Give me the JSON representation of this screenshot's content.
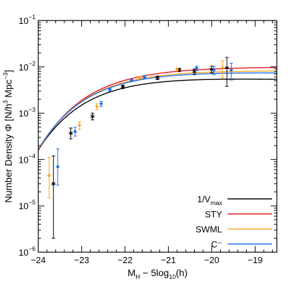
{
  "chart_data": {
    "type": "line",
    "title": "",
    "xlabel": {
      "main": "M",
      "sub1": "H",
      "mid": " − 5log",
      "sub2": "10",
      "tail": "(h)"
    },
    "ylabel": {
      "main": "Number Density Φ [N/h",
      "sup1": "3",
      "mid": " Mpc",
      "sup2": "−3",
      "tail": "]"
    },
    "x_range": [
      -24,
      -18.5
    ],
    "y_range": [
      1e-06,
      0.1
    ],
    "y_scale": "log",
    "x_ticks": [
      -24,
      -23,
      -22,
      -21,
      -20,
      -19
    ],
    "x_tick_labels": [
      "−24",
      "−23",
      "−22",
      "−21",
      "−20",
      "−19"
    ],
    "y_ticks": [
      1e-06,
      1e-05,
      0.0001,
      0.001,
      0.01,
      0.1
    ],
    "y_tick_labels": [
      {
        "base": "10",
        "exp": "−6"
      },
      {
        "base": "10",
        "exp": "−5"
      },
      {
        "base": "10",
        "exp": "−4"
      },
      {
        "base": "10",
        "exp": "−3"
      },
      {
        "base": "10",
        "exp": "−2"
      },
      {
        "base": "10",
        "exp": "−1"
      }
    ],
    "grid": false,
    "legend_position": "bottom-right",
    "legend": [
      {
        "label": "1/V",
        "label_sub": "max",
        "color": "#000000"
      },
      {
        "label": "STY",
        "label_sub": "",
        "color": "#e8141b"
      },
      {
        "label": "SWML",
        "label_sub": "",
        "color": "#f5a623"
      },
      {
        "label": "C⁻",
        "label_sub": "",
        "color": "#1f6ee8"
      }
    ],
    "series": [
      {
        "name": "1/V",
        "name_sub": "max",
        "kind": "points+fit",
        "color": "#000000",
        "marker": "asterisk",
        "fit": {
          "M_star": -22.55,
          "phi_star": 0.0072,
          "alpha": -0.95
        },
        "points": [
          {
            "x": -23.65,
            "y": 3e-05,
            "ylo": 2e-06,
            "yhi": 0.00012
          },
          {
            "x": -23.25,
            "y": 0.00037,
            "ylo": 0.00028,
            "yhi": 0.00048
          },
          {
            "x": -22.75,
            "y": 0.00085,
            "ylo": 0.00072,
            "yhi": 0.001
          },
          {
            "x": -22.05,
            "y": 0.0037,
            "ylo": 0.0034,
            "yhi": 0.004
          },
          {
            "x": -21.25,
            "y": 0.0058,
            "ylo": 0.0053,
            "yhi": 0.0063
          },
          {
            "x": -20.75,
            "y": 0.0086,
            "ylo": 0.0079,
            "yhi": 0.0093
          },
          {
            "x": -20.4,
            "y": 0.0079,
            "ylo": 0.0068,
            "yhi": 0.009
          },
          {
            "x": -20.0,
            "y": 0.0088,
            "ylo": 0.0074,
            "yhi": 0.0104
          },
          {
            "x": -19.65,
            "y": 0.0095,
            "ylo": 0.0038,
            "yhi": 0.016
          }
        ]
      },
      {
        "name": "STY",
        "name_sub": "",
        "kind": "fit",
        "color": "#e8141b",
        "fit": {
          "M_star": -22.45,
          "phi_star": 0.0108,
          "alpha": -1.0
        }
      },
      {
        "name": "SWML",
        "name_sub": "",
        "kind": "points+fit",
        "color": "#f5a623",
        "marker": "diamond",
        "fit": {
          "M_star": -22.48,
          "phi_star": 0.0097,
          "alpha": -0.98
        },
        "points": [
          {
            "x": -23.75,
            "y": 4.5e-05,
            "ylo": 1.5e-05,
            "yhi": 0.00011
          },
          {
            "x": -23.05,
            "y": 0.00055,
            "ylo": 0.00045,
            "yhi": 0.00066
          },
          {
            "x": -22.65,
            "y": 0.0014,
            "ylo": 0.0012,
            "yhi": 0.0016
          },
          {
            "x": -21.65,
            "y": 0.0058,
            "ylo": 0.0055,
            "yhi": 0.0062
          },
          {
            "x": -20.8,
            "y": 0.0088,
            "ylo": 0.0082,
            "yhi": 0.0094
          },
          {
            "x": -19.75,
            "y": 0.0096,
            "ylo": 0.0058,
            "yhi": 0.0135
          }
        ]
      },
      {
        "name": "C⁻",
        "name_sub": "",
        "kind": "points+fit",
        "color": "#1f6ee8",
        "marker": "diamond",
        "fit": {
          "M_star": -22.5,
          "phi_star": 0.0092,
          "alpha": -0.97
        },
        "points": [
          {
            "x": -23.55,
            "y": 7e-05,
            "ylo": 2.8e-05,
            "yhi": 0.00017
          },
          {
            "x": -23.15,
            "y": 0.0004,
            "ylo": 0.00032,
            "yhi": 0.0005
          },
          {
            "x": -22.55,
            "y": 0.0016,
            "ylo": 0.0014,
            "yhi": 0.0018
          },
          {
            "x": -22.35,
            "y": 0.0032,
            "ylo": 0.003,
            "yhi": 0.0034
          },
          {
            "x": -21.85,
            "y": 0.0051,
            "ylo": 0.0048,
            "yhi": 0.0054
          },
          {
            "x": -21.55,
            "y": 0.006,
            "ylo": 0.0056,
            "yhi": 0.0064
          },
          {
            "x": -20.35,
            "y": 0.0093,
            "ylo": 0.0083,
            "yhi": 0.0103
          },
          {
            "x": -19.95,
            "y": 0.0085,
            "ylo": 0.0068,
            "yhi": 0.0102
          },
          {
            "x": -19.55,
            "y": 0.0085,
            "ylo": 0.0052,
            "yhi": 0.012
          }
        ]
      }
    ]
  }
}
